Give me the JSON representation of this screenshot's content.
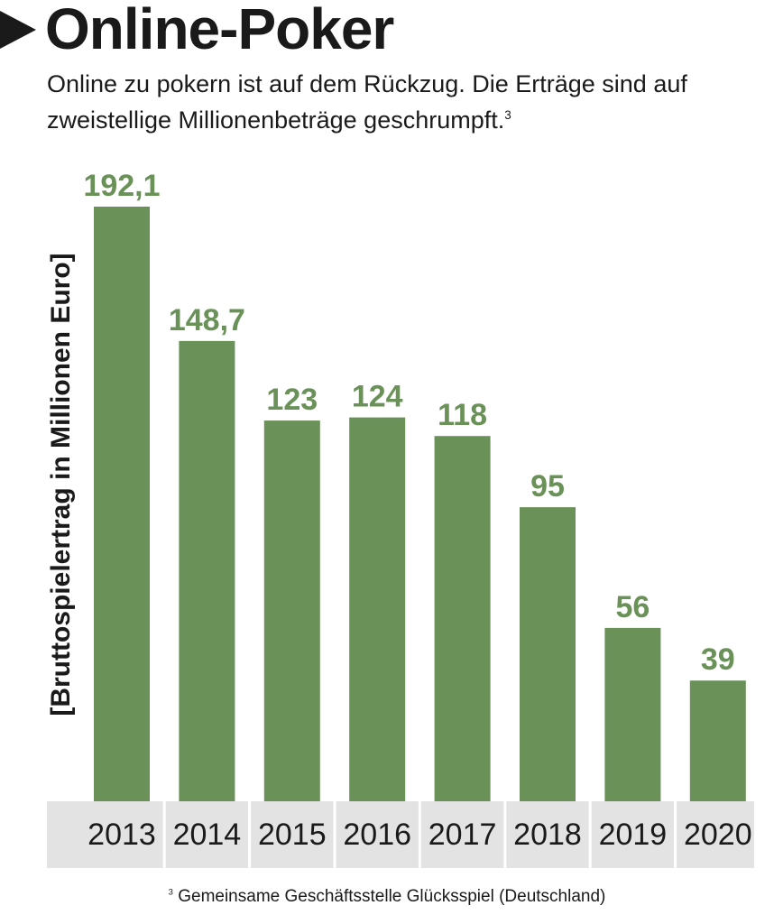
{
  "header": {
    "title": "Online-Poker",
    "subtitle": "Online zu pokern ist auf dem Rückzug. Die Erträge sind auf zweistellige Millionenbeträge geschrumpft.",
    "subtitle_footnote_mark": "3"
  },
  "footnote": {
    "mark": "3",
    "text": "Gemeinsame Geschäftsstelle Glücksspiel (Deutschland)"
  },
  "colors": {
    "bar": "#6a9158",
    "axis_band": "#e3e3e3",
    "text": "#1a1a1a"
  },
  "chart_data": {
    "type": "bar",
    "title": "Online-Poker",
    "xlabel": "",
    "ylabel": "[Bruttospielertrag in Millionen Euro]",
    "categories": [
      "2013",
      "2014",
      "2015",
      "2016",
      "2017",
      "2018",
      "2019",
      "2020"
    ],
    "values": [
      192.1,
      148.7,
      123,
      124,
      118,
      95,
      56,
      39
    ],
    "value_labels": [
      "192,1",
      "148,7",
      "123",
      "124",
      "118",
      "95",
      "56",
      "39"
    ],
    "ylim": [
      0,
      192.1
    ],
    "grid": false,
    "legend": "none"
  }
}
